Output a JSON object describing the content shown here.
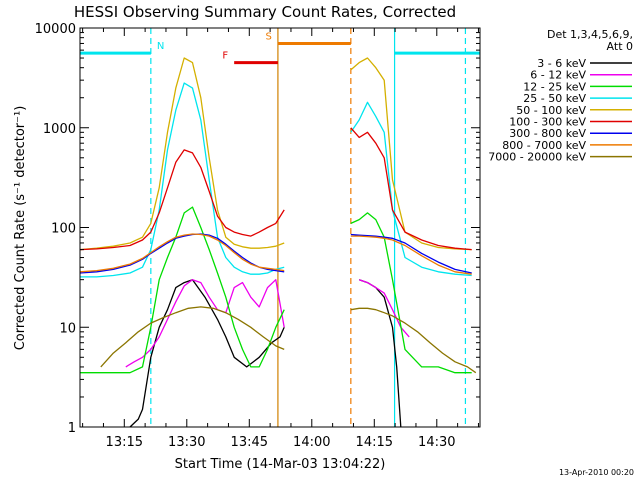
{
  "chart_data": {
    "type": "line",
    "title": "HESSI Observing Summary Count Rates, Corrected",
    "xlabel": "Start Time (14-Mar-03 13:04:22)",
    "ylabel": "Corrected Count Rate (s⁻¹ detector⁻¹)",
    "y_scale": "log",
    "ylim": [
      1,
      10000
    ],
    "xlim_minutes": [
      0,
      96
    ],
    "x_tick_labels": [
      "13:15",
      "13:30",
      "13:45",
      "14:00",
      "14:15",
      "14:30"
    ],
    "x_tick_minutes": [
      10.63,
      25.63,
      40.63,
      55.63,
      70.63,
      85.63
    ],
    "y_tick_labels": [
      "1",
      "10",
      "100",
      "1000",
      "10000"
    ],
    "y_tick_values": [
      1,
      10,
      100,
      1000,
      10000
    ],
    "grid": false,
    "legend_position": "right",
    "legend_title": [
      "Det 1,3,4,5,6,9,",
      "Att 0"
    ],
    "timestamp": "13-Apr-2010 00:20",
    "annotations": [
      {
        "label": "N",
        "color": "#00e5ee",
        "segments": [
          [
            0,
            17
          ],
          [
            75.5,
            96
          ]
        ],
        "y": 5600
      },
      {
        "label": "F",
        "color": "#e00000",
        "segments": [
          [
            37,
            47.5
          ]
        ],
        "y": 4500
      },
      {
        "label": "S",
        "color": "#ee7a00",
        "segments": [
          [
            47.5,
            65
          ]
        ],
        "y": 7000
      }
    ],
    "vertical_lines": [
      {
        "x": 17,
        "color": "#00e5ee",
        "style": "dashed"
      },
      {
        "x": 75.5,
        "color": "#00e5ee",
        "style": "solid"
      },
      {
        "x": 92.5,
        "color": "#00e5ee",
        "style": "dashed"
      },
      {
        "x": 47.5,
        "color": "#d08000",
        "style": "solid"
      },
      {
        "x": 65,
        "color": "#ee7a00",
        "style": "dashed"
      }
    ],
    "series": [
      {
        "name": "3 - 6 keV",
        "color": "#000000",
        "segments": [
          {
            "x": [
              12,
              14,
              15,
              17,
              19,
              21,
              23,
              25,
              27,
              30,
              33,
              35,
              37,
              40,
              43,
              46,
              48,
              49
            ],
            "y": [
              1,
              1.2,
              1.5,
              5,
              10,
              15,
              25,
              28,
              30,
              20,
              12,
              8,
              5,
              4,
              5,
              7,
              8,
              10
            ]
          },
          {
            "x": [
              67,
              69,
              71,
              73,
              75,
              76,
              77
            ],
            "y": [
              30,
              28,
              25,
              20,
              10,
              4,
              1
            ]
          }
        ]
      },
      {
        "name": "6 - 12 keV",
        "color": "#ee00ee",
        "segments": [
          {
            "x": [
              11,
              13,
              15,
              17,
              19,
              21,
              23,
              25,
              27,
              29,
              31,
              33,
              35,
              37,
              39,
              41,
              43,
              45,
              47,
              49
            ],
            "y": [
              4,
              4.5,
              5,
              6,
              8,
              12,
              18,
              26,
              30,
              28,
              20,
              15,
              14,
              25,
              28,
              20,
              16,
              25,
              30,
              10
            ]
          },
          {
            "x": [
              67,
              69,
              71,
              73,
              75,
              77,
              79
            ],
            "y": [
              30,
              28,
              25,
              22,
              15,
              10,
              8
            ]
          }
        ]
      },
      {
        "name": "12 - 25 keV",
        "color": "#00dd00",
        "segments": [
          {
            "x": [
              0,
              4,
              8,
              12,
              15,
              17,
              19,
              21,
              23,
              25,
              27,
              29,
              31,
              33,
              35,
              37,
              39,
              41,
              43,
              45,
              47,
              49
            ],
            "y": [
              3.5,
              3.5,
              3.5,
              3.5,
              4,
              10,
              30,
              50,
              80,
              140,
              160,
              100,
              60,
              35,
              20,
              10,
              6,
              4,
              4,
              6,
              10,
              15
            ]
          },
          {
            "x": [
              65,
              67,
              69,
              71,
              73,
              75,
              78,
              82,
              86,
              90,
              94
            ],
            "y": [
              110,
              120,
              140,
              120,
              80,
              30,
              6,
              4,
              4,
              3.5,
              3.5
            ]
          }
        ]
      },
      {
        "name": "25 - 50 keV",
        "color": "#00e5ee",
        "segments": [
          {
            "x": [
              0,
              4,
              8,
              12,
              15,
              17,
              19,
              21,
              23,
              25,
              27,
              29,
              31,
              33,
              35,
              37,
              39,
              41,
              43,
              45,
              47,
              49
            ],
            "y": [
              32,
              32,
              33,
              35,
              40,
              60,
              150,
              600,
              1500,
              2800,
              2500,
              1200,
              300,
              80,
              50,
              40,
              36,
              34,
              34,
              35,
              38,
              40
            ]
          },
          {
            "x": [
              65,
              67,
              69,
              71,
              73,
              75,
              78,
              82,
              86,
              90,
              94
            ],
            "y": [
              900,
              1200,
              1800,
              1300,
              900,
              150,
              50,
              40,
              36,
              34,
              33
            ]
          }
        ]
      },
      {
        "name": "50 - 100 keV",
        "color": "#d4b000",
        "segments": [
          {
            "x": [
              0,
              4,
              8,
              12,
              15,
              17,
              19,
              21,
              23,
              25,
              27,
              29,
              31,
              33,
              35,
              37,
              39,
              41,
              43,
              45,
              47,
              49
            ],
            "y": [
              60,
              62,
              65,
              70,
              80,
              110,
              250,
              900,
              2500,
              5000,
              4500,
              2000,
              500,
              150,
              80,
              68,
              64,
              62,
              62,
              63,
              65,
              70
            ]
          },
          {
            "x": [
              65,
              67,
              69,
              71,
              73,
              75,
              78,
              82,
              86,
              90,
              94
            ],
            "y": [
              3800,
              4500,
              5000,
              4000,
              3000,
              300,
              90,
              70,
              63,
              61,
              60
            ]
          }
        ]
      },
      {
        "name": "100 - 300 keV",
        "color": "#e00000",
        "segments": [
          {
            "x": [
              0,
              4,
              8,
              12,
              15,
              17,
              19,
              21,
              23,
              25,
              27,
              29,
              31,
              33,
              35,
              37,
              39,
              41,
              43,
              45,
              47,
              49
            ],
            "y": [
              60,
              61,
              63,
              66,
              75,
              90,
              140,
              250,
              450,
              600,
              560,
              400,
              230,
              130,
              100,
              90,
              85,
              82,
              90,
              100,
              110,
              150
            ]
          },
          {
            "x": [
              65,
              67,
              69,
              71,
              73,
              75,
              78,
              82,
              86,
              90,
              94
            ],
            "y": [
              1000,
              800,
              900,
              700,
              500,
              150,
              90,
              75,
              66,
              62,
              60
            ]
          }
        ]
      },
      {
        "name": "300 - 800 keV",
        "color": "#0000ee",
        "segments": [
          {
            "x": [
              0,
              4,
              8,
              12,
              15,
              17,
              19,
              21,
              23,
              25,
              27,
              29,
              31,
              33,
              35,
              37,
              39,
              41,
              43,
              45,
              47,
              49
            ],
            "y": [
              35,
              36,
              38,
              42,
              48,
              55,
              62,
              70,
              78,
              82,
              85,
              86,
              84,
              78,
              68,
              58,
              50,
              44,
              40,
              38,
              37,
              36
            ]
          },
          {
            "x": [
              65,
              67,
              69,
              71,
              73,
              75,
              78,
              82,
              86,
              90,
              94
            ],
            "y": [
              85,
              84,
              83,
              82,
              80,
              78,
              70,
              55,
              45,
              38,
              35
            ]
          }
        ]
      },
      {
        "name": "800 - 7000 keV",
        "color": "#ee7a00",
        "segments": [
          {
            "x": [
              0,
              4,
              8,
              12,
              15,
              17,
              19,
              21,
              23,
              25,
              27,
              29,
              31,
              33,
              35,
              37,
              39,
              41,
              43,
              45,
              47,
              49
            ],
            "y": [
              36,
              37,
              39,
              43,
              49,
              56,
              64,
              72,
              80,
              84,
              86,
              85,
              82,
              75,
              66,
              56,
              48,
              43,
              40,
              39,
              38,
              37
            ]
          },
          {
            "x": [
              65,
              67,
              69,
              71,
              73,
              75,
              78,
              82,
              86,
              90,
              94
            ],
            "y": [
              82,
              82,
              81,
              80,
              78,
              75,
              66,
              52,
              42,
              36,
              34
            ]
          }
        ]
      },
      {
        "name": "7000 - 20000 keV",
        "color": "#8b7500",
        "segments": [
          {
            "x": [
              5,
              8,
              11,
              14,
              17,
              20,
              23,
              26,
              29,
              32,
              35,
              38,
              41,
              44,
              47,
              49
            ],
            "y": [
              4,
              5.5,
              7,
              9,
              11,
              12.5,
              14,
              15.5,
              16,
              15.5,
              14,
              12,
              10,
              8,
              6.5,
              6
            ]
          },
          {
            "x": [
              65,
              67,
              69,
              71,
              73,
              75,
              78,
              81,
              84,
              87,
              90,
              93,
              95
            ],
            "y": [
              15,
              15.5,
              15.5,
              15,
              14,
              13,
              11,
              9,
              7,
              5.5,
              4.5,
              4,
              3.5
            ]
          }
        ]
      }
    ]
  }
}
